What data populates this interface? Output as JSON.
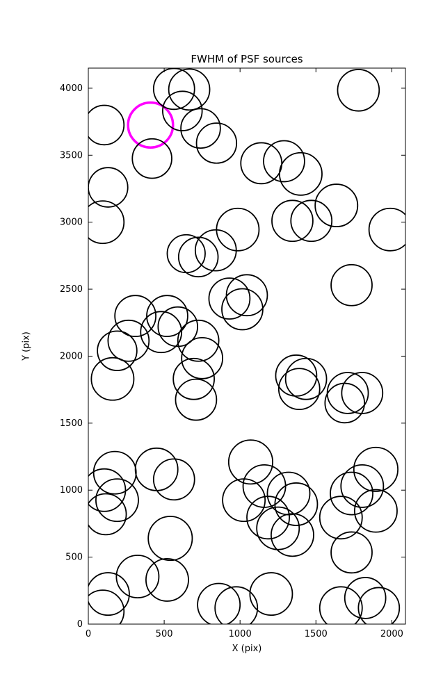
{
  "figure": {
    "title": "FWHM of PSF sources",
    "xlabel": "X (pix)",
    "ylabel": "Y (pix)"
  },
  "chart_data": {
    "type": "scatter",
    "title": "FWHM of PSF sources",
    "xlabel": "X (pix)",
    "ylabel": "Y (pix)",
    "xlim": [
      0,
      2090
    ],
    "ylim": [
      0,
      4150
    ],
    "xticks": [
      0,
      500,
      1000,
      1500,
      2000
    ],
    "yticks": [
      0,
      500,
      1000,
      1500,
      2000,
      2500,
      3000,
      3500,
      4000
    ],
    "grid": false,
    "legend": "none",
    "marker": "open-circle",
    "default_color": "#000000",
    "highlight_color": "#ff00ff",
    "points": [
      {
        "x": 105,
        "y": 3725,
        "r": 130
      },
      {
        "x": 410,
        "y": 3725,
        "r": 148,
        "highlight": true
      },
      {
        "x": 565,
        "y": 3995,
        "r": 135
      },
      {
        "x": 665,
        "y": 3990,
        "r": 135
      },
      {
        "x": 620,
        "y": 3830,
        "r": 130
      },
      {
        "x": 740,
        "y": 3700,
        "r": 130
      },
      {
        "x": 845,
        "y": 3590,
        "r": 132
      },
      {
        "x": 420,
        "y": 3475,
        "r": 130
      },
      {
        "x": 1780,
        "y": 3985,
        "r": 137
      },
      {
        "x": 1140,
        "y": 3440,
        "r": 135
      },
      {
        "x": 1290,
        "y": 3455,
        "r": 135
      },
      {
        "x": 1400,
        "y": 3360,
        "r": 140
      },
      {
        "x": 130,
        "y": 3260,
        "r": 130
      },
      {
        "x": 95,
        "y": 3000,
        "r": 140
      },
      {
        "x": 1635,
        "y": 3125,
        "r": 140
      },
      {
        "x": 1345,
        "y": 3010,
        "r": 135
      },
      {
        "x": 1470,
        "y": 3010,
        "r": 135
      },
      {
        "x": 1990,
        "y": 2945,
        "r": 140
      },
      {
        "x": 985,
        "y": 2945,
        "r": 140
      },
      {
        "x": 840,
        "y": 2790,
        "r": 135
      },
      {
        "x": 725,
        "y": 2740,
        "r": 130
      },
      {
        "x": 645,
        "y": 2765,
        "r": 125
      },
      {
        "x": 1735,
        "y": 2530,
        "r": 135
      },
      {
        "x": 930,
        "y": 2430,
        "r": 135
      },
      {
        "x": 1045,
        "y": 2455,
        "r": 135
      },
      {
        "x": 1015,
        "y": 2350,
        "r": 135
      },
      {
        "x": 310,
        "y": 2300,
        "r": 135
      },
      {
        "x": 520,
        "y": 2300,
        "r": 135
      },
      {
        "x": 590,
        "y": 2220,
        "r": 130
      },
      {
        "x": 480,
        "y": 2180,
        "r": 135
      },
      {
        "x": 265,
        "y": 2115,
        "r": 135
      },
      {
        "x": 190,
        "y": 2040,
        "r": 130
      },
      {
        "x": 725,
        "y": 2115,
        "r": 135
      },
      {
        "x": 750,
        "y": 1985,
        "r": 135
      },
      {
        "x": 160,
        "y": 1830,
        "r": 140
      },
      {
        "x": 695,
        "y": 1830,
        "r": 135
      },
      {
        "x": 710,
        "y": 1675,
        "r": 135
      },
      {
        "x": 1370,
        "y": 1855,
        "r": 135
      },
      {
        "x": 1435,
        "y": 1830,
        "r": 135
      },
      {
        "x": 1390,
        "y": 1755,
        "r": 135
      },
      {
        "x": 1710,
        "y": 1725,
        "r": 135
      },
      {
        "x": 1805,
        "y": 1725,
        "r": 135
      },
      {
        "x": 1690,
        "y": 1650,
        "r": 130
      },
      {
        "x": 1070,
        "y": 1210,
        "r": 145
      },
      {
        "x": 175,
        "y": 1130,
        "r": 140
      },
      {
        "x": 450,
        "y": 1155,
        "r": 140
      },
      {
        "x": 565,
        "y": 1080,
        "r": 135
      },
      {
        "x": 1895,
        "y": 1155,
        "r": 145
      },
      {
        "x": 105,
        "y": 1000,
        "r": 140
      },
      {
        "x": 190,
        "y": 925,
        "r": 140
      },
      {
        "x": 115,
        "y": 820,
        "r": 135
      },
      {
        "x": 1160,
        "y": 1030,
        "r": 140
      },
      {
        "x": 1025,
        "y": 925,
        "r": 140
      },
      {
        "x": 1320,
        "y": 975,
        "r": 140
      },
      {
        "x": 1370,
        "y": 895,
        "r": 140
      },
      {
        "x": 1735,
        "y": 975,
        "r": 140
      },
      {
        "x": 1805,
        "y": 1030,
        "r": 140
      },
      {
        "x": 1895,
        "y": 845,
        "r": 140
      },
      {
        "x": 1665,
        "y": 795,
        "r": 140
      },
      {
        "x": 1185,
        "y": 795,
        "r": 140
      },
      {
        "x": 1250,
        "y": 715,
        "r": 140
      },
      {
        "x": 1345,
        "y": 665,
        "r": 140
      },
      {
        "x": 540,
        "y": 640,
        "r": 145
      },
      {
        "x": 1735,
        "y": 535,
        "r": 135
      },
      {
        "x": 325,
        "y": 355,
        "r": 140
      },
      {
        "x": 520,
        "y": 330,
        "r": 140
      },
      {
        "x": 130,
        "y": 225,
        "r": 140
      },
      {
        "x": 95,
        "y": 95,
        "r": 140
      },
      {
        "x": 860,
        "y": 145,
        "r": 140
      },
      {
        "x": 975,
        "y": 120,
        "r": 140
      },
      {
        "x": 1205,
        "y": 225,
        "r": 140
      },
      {
        "x": 1665,
        "y": 120,
        "r": 140
      },
      {
        "x": 1825,
        "y": 195,
        "r": 135
      },
      {
        "x": 1915,
        "y": 120,
        "r": 135
      }
    ]
  }
}
